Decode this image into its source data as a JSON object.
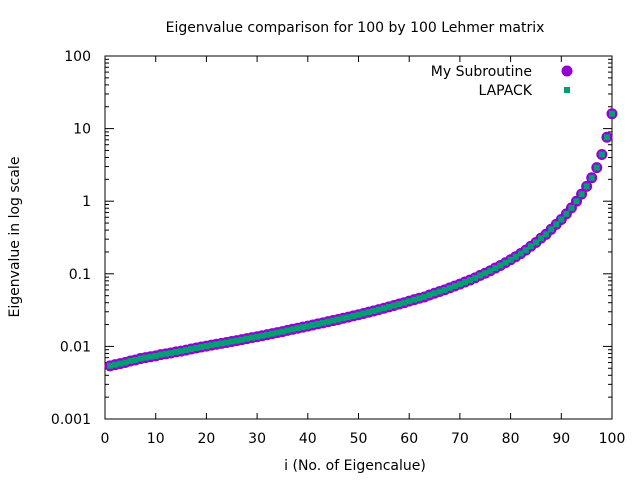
{
  "chart_data": {
    "type": "scatter",
    "title": "Eigenvalue comparison for 100 by 100 Lehmer matrix",
    "xlabel": "i (No. of Eigencalue)",
    "ylabel": "Eigenvalue in log scale",
    "xlim": [
      0,
      100
    ],
    "ylim": [
      0.001,
      100
    ],
    "yscale": "log",
    "xticks": [
      0,
      10,
      20,
      30,
      40,
      50,
      60,
      70,
      80,
      90,
      100
    ],
    "xtick_labels": [
      "0",
      "10",
      "20",
      "30",
      "40",
      "50",
      "60",
      "70",
      "80",
      "90",
      "100"
    ],
    "yticks": [
      0.001,
      0.01,
      0.1,
      1,
      10,
      100
    ],
    "ytick_labels": [
      "0.001",
      "0.01",
      "0.1",
      "1",
      "10",
      "100"
    ],
    "grid": false,
    "legend_position": "top-right",
    "x": [
      1,
      2,
      3,
      4,
      5,
      6,
      7,
      8,
      9,
      10,
      11,
      12,
      13,
      14,
      15,
      16,
      17,
      18,
      19,
      20,
      21,
      22,
      23,
      24,
      25,
      26,
      27,
      28,
      29,
      30,
      31,
      32,
      33,
      34,
      35,
      36,
      37,
      38,
      39,
      40,
      41,
      42,
      43,
      44,
      45,
      46,
      47,
      48,
      49,
      50,
      51,
      52,
      53,
      54,
      55,
      56,
      57,
      58,
      59,
      60,
      61,
      62,
      63,
      64,
      65,
      66,
      67,
      68,
      69,
      70,
      71,
      72,
      73,
      74,
      75,
      76,
      77,
      78,
      79,
      80,
      81,
      82,
      83,
      84,
      85,
      86,
      87,
      88,
      89,
      90,
      91,
      92,
      93,
      94,
      95,
      96,
      97,
      98,
      99,
      100
    ],
    "series": [
      {
        "name": "My Subroutine",
        "marker": "circle",
        "color": "#9400d3",
        "values": [
          0.0054,
          0.0056,
          0.0058,
          0.006,
          0.0063,
          0.0065,
          0.0068,
          0.007,
          0.0072,
          0.0074,
          0.0077,
          0.0079,
          0.0081,
          0.0084,
          0.0086,
          0.0089,
          0.0092,
          0.0095,
          0.0098,
          0.0101,
          0.0104,
          0.0107,
          0.011,
          0.0113,
          0.0117,
          0.012,
          0.0124,
          0.0128,
          0.0132,
          0.0136,
          0.014,
          0.0145,
          0.015,
          0.0155,
          0.016,
          0.0166,
          0.0172,
          0.0178,
          0.0184,
          0.019,
          0.0197,
          0.0204,
          0.0211,
          0.0219,
          0.0227,
          0.0235,
          0.0244,
          0.0253,
          0.0263,
          0.0273,
          0.0284,
          0.0296,
          0.0308,
          0.0321,
          0.0335,
          0.035,
          0.0366,
          0.0383,
          0.04,
          0.042,
          0.044,
          0.046,
          0.048,
          0.051,
          0.054,
          0.057,
          0.06,
          0.064,
          0.068,
          0.072,
          0.077,
          0.082,
          0.088,
          0.095,
          0.102,
          0.11,
          0.12,
          0.13,
          0.142,
          0.156,
          0.172,
          0.19,
          0.212,
          0.24,
          0.27,
          0.31,
          0.35,
          0.41,
          0.48,
          0.56,
          0.67,
          0.81,
          1.0,
          1.25,
          1.6,
          2.1,
          2.9,
          4.4,
          7.6,
          16.0
        ]
      },
      {
        "name": "LAPACK",
        "marker": "square",
        "color": "#009e73",
        "values": [
          0.0054,
          0.0056,
          0.0058,
          0.006,
          0.0063,
          0.0065,
          0.0068,
          0.007,
          0.0072,
          0.0074,
          0.0077,
          0.0079,
          0.0081,
          0.0084,
          0.0086,
          0.0089,
          0.0092,
          0.0095,
          0.0098,
          0.0101,
          0.0104,
          0.0107,
          0.011,
          0.0113,
          0.0117,
          0.012,
          0.0124,
          0.0128,
          0.0132,
          0.0136,
          0.014,
          0.0145,
          0.015,
          0.0155,
          0.016,
          0.0166,
          0.0172,
          0.0178,
          0.0184,
          0.019,
          0.0197,
          0.0204,
          0.0211,
          0.0219,
          0.0227,
          0.0235,
          0.0244,
          0.0253,
          0.0263,
          0.0273,
          0.0284,
          0.0296,
          0.0308,
          0.0321,
          0.0335,
          0.035,
          0.0366,
          0.0383,
          0.04,
          0.042,
          0.044,
          0.046,
          0.048,
          0.051,
          0.054,
          0.057,
          0.06,
          0.064,
          0.068,
          0.072,
          0.077,
          0.082,
          0.088,
          0.095,
          0.102,
          0.11,
          0.12,
          0.13,
          0.142,
          0.156,
          0.172,
          0.19,
          0.212,
          0.24,
          0.27,
          0.31,
          0.35,
          0.41,
          0.48,
          0.56,
          0.67,
          0.81,
          1.0,
          1.25,
          1.6,
          2.1,
          2.9,
          4.4,
          7.6,
          16.0
        ]
      }
    ]
  }
}
